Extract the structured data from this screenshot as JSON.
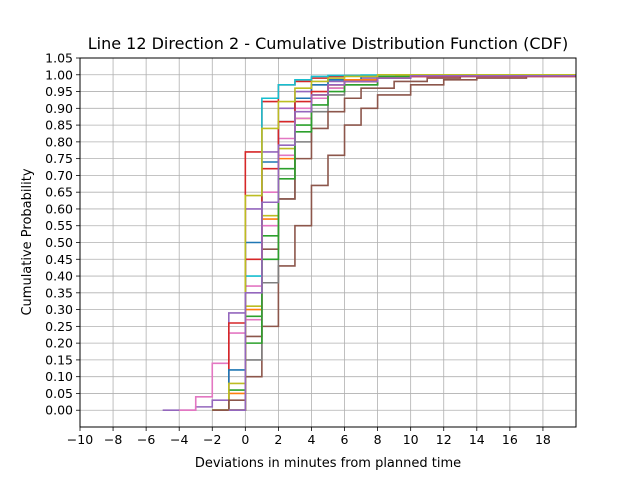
{
  "chart_data": {
    "type": "line",
    "step": true,
    "title": "Line 12 Direction 2 - Cumulative Distribution Function (CDF)",
    "xlabel": "Deviations in minutes from planned time",
    "ylabel": "Cumulative Probability",
    "xlim": [
      -10,
      20
    ],
    "ylim": [
      -0.05,
      1.05
    ],
    "xticks": [
      -10,
      -8,
      -6,
      -4,
      -2,
      0,
      2,
      4,
      6,
      8,
      10,
      12,
      14,
      16,
      18
    ],
    "yticks": [
      0,
      0.05,
      0.1,
      0.15,
      0.2,
      0.25,
      0.3,
      0.35,
      0.4,
      0.45,
      0.5,
      0.55,
      0.6,
      0.65,
      0.7,
      0.75,
      0.8,
      0.85,
      0.9,
      0.95,
      1.0,
      1.05
    ],
    "grid": true,
    "series": [
      {
        "color": "#9467bd",
        "x": [
          -5,
          -3,
          -2,
          -1,
          0,
          1,
          2,
          3,
          4,
          5,
          7,
          9,
          11,
          13,
          20
        ],
        "y": [
          0.0,
          0.01,
          0.03,
          0.29,
          0.6,
          0.77,
          0.9,
          0.95,
          0.97,
          0.98,
          0.99,
          0.995,
          0.998,
          1.0,
          1.0
        ]
      },
      {
        "color": "#e377c2",
        "x": [
          -4,
          -3,
          -2,
          -1,
          0,
          1,
          2,
          3,
          4,
          5,
          6,
          8,
          10,
          20
        ],
        "y": [
          0.0,
          0.04,
          0.14,
          0.23,
          0.37,
          0.65,
          0.81,
          0.9,
          0.94,
          0.97,
          0.98,
          0.99,
          1.0,
          1.0
        ]
      },
      {
        "color": "#d62728",
        "x": [
          -2,
          -1,
          0,
          1,
          2,
          3,
          4,
          5,
          6,
          8,
          10,
          20
        ],
        "y": [
          0.0,
          0.26,
          0.77,
          0.92,
          0.97,
          0.98,
          0.99,
          0.995,
          0.998,
          0.999,
          1.0,
          1.0
        ]
      },
      {
        "color": "#1f77b4",
        "x": [
          -2,
          -1,
          0,
          1,
          2,
          3,
          4,
          5,
          7,
          9,
          20
        ],
        "y": [
          0.0,
          0.12,
          0.5,
          0.74,
          0.86,
          0.93,
          0.97,
          0.985,
          0.995,
          1.0,
          1.0
        ]
      },
      {
        "color": "#ff7f0e",
        "x": [
          -2,
          -1,
          0,
          1,
          2,
          3,
          4,
          5,
          6,
          8,
          10,
          20
        ],
        "y": [
          0.0,
          0.05,
          0.3,
          0.57,
          0.75,
          0.87,
          0.94,
          0.97,
          0.985,
          0.995,
          1.0,
          1.0
        ]
      },
      {
        "color": "#2ca02c",
        "x": [
          -2,
          -1,
          0,
          1,
          2,
          3,
          4,
          5,
          6,
          8,
          10,
          20
        ],
        "y": [
          0.0,
          0.06,
          0.28,
          0.52,
          0.72,
          0.85,
          0.93,
          0.96,
          0.98,
          0.995,
          1.0,
          1.0
        ]
      },
      {
        "color": "#8c564b",
        "x": [
          -1,
          0,
          1,
          2,
          3,
          4,
          5,
          6,
          7,
          8,
          10,
          12,
          14,
          17,
          20
        ],
        "y": [
          0.0,
          0.1,
          0.25,
          0.43,
          0.55,
          0.67,
          0.76,
          0.85,
          0.9,
          0.94,
          0.97,
          0.985,
          0.99,
          1.0,
          1.0
        ]
      },
      {
        "color": "#bcbd22",
        "x": [
          -2,
          -1,
          0,
          1,
          2,
          3,
          4,
          5,
          6,
          8,
          10,
          12,
          20
        ],
        "y": [
          0.0,
          0.08,
          0.31,
          0.58,
          0.78,
          0.87,
          0.93,
          0.96,
          0.98,
          0.99,
          0.995,
          1.0,
          1.0
        ]
      },
      {
        "color": "#17becf",
        "x": [
          -1,
          0,
          1,
          2,
          3,
          4,
          5,
          7,
          9,
          20
        ],
        "y": [
          0.0,
          0.4,
          0.93,
          0.97,
          0.985,
          0.995,
          0.998,
          0.999,
          1.0,
          1.0
        ]
      },
      {
        "color": "#7f7f7f",
        "x": [
          -1,
          0,
          1,
          2,
          3,
          4,
          5,
          6,
          8,
          10,
          20
        ],
        "y": [
          0.0,
          0.15,
          0.38,
          0.63,
          0.8,
          0.89,
          0.94,
          0.97,
          0.99,
          0.995,
          1.0
        ]
      },
      {
        "color": "#8c564b",
        "x": [
          -2,
          -1,
          0,
          1,
          2,
          3,
          4,
          5,
          6,
          7,
          9,
          11,
          13,
          20
        ],
        "y": [
          0.0,
          0.03,
          0.22,
          0.48,
          0.63,
          0.75,
          0.84,
          0.89,
          0.93,
          0.96,
          0.98,
          0.99,
          0.997,
          1.0
        ]
      },
      {
        "color": "#e377c2",
        "x": [
          -1,
          0,
          1,
          2,
          3,
          4,
          5,
          6,
          8,
          10,
          12,
          20
        ],
        "y": [
          0.0,
          0.27,
          0.55,
          0.76,
          0.87,
          0.93,
          0.96,
          0.98,
          0.99,
          0.995,
          1.0,
          1.0
        ]
      },
      {
        "color": "#2ca02c",
        "x": [
          -1,
          0,
          1,
          2,
          3,
          4,
          5,
          6,
          8,
          10,
          20
        ],
        "y": [
          0.0,
          0.2,
          0.45,
          0.69,
          0.83,
          0.91,
          0.95,
          0.97,
          0.99,
          0.997,
          1.0
        ]
      },
      {
        "color": "#d62728",
        "x": [
          -1,
          0,
          1,
          2,
          3,
          4,
          5,
          6,
          8,
          10,
          20
        ],
        "y": [
          0.0,
          0.45,
          0.72,
          0.86,
          0.92,
          0.95,
          0.97,
          0.98,
          0.99,
          0.995,
          1.0
        ]
      },
      {
        "color": "#bcbd22",
        "x": [
          -1,
          0,
          1,
          2,
          3,
          4,
          5,
          6,
          8,
          20
        ],
        "y": [
          0.0,
          0.64,
          0.84,
          0.92,
          0.96,
          0.98,
          0.99,
          0.995,
          1.0,
          1.0
        ]
      },
      {
        "color": "#9467bd",
        "x": [
          -1,
          0,
          1,
          2,
          3,
          4,
          5,
          6,
          8,
          10,
          20
        ],
        "y": [
          0.0,
          0.35,
          0.62,
          0.79,
          0.89,
          0.94,
          0.97,
          0.98,
          0.99,
          0.997,
          1.0
        ]
      }
    ]
  }
}
